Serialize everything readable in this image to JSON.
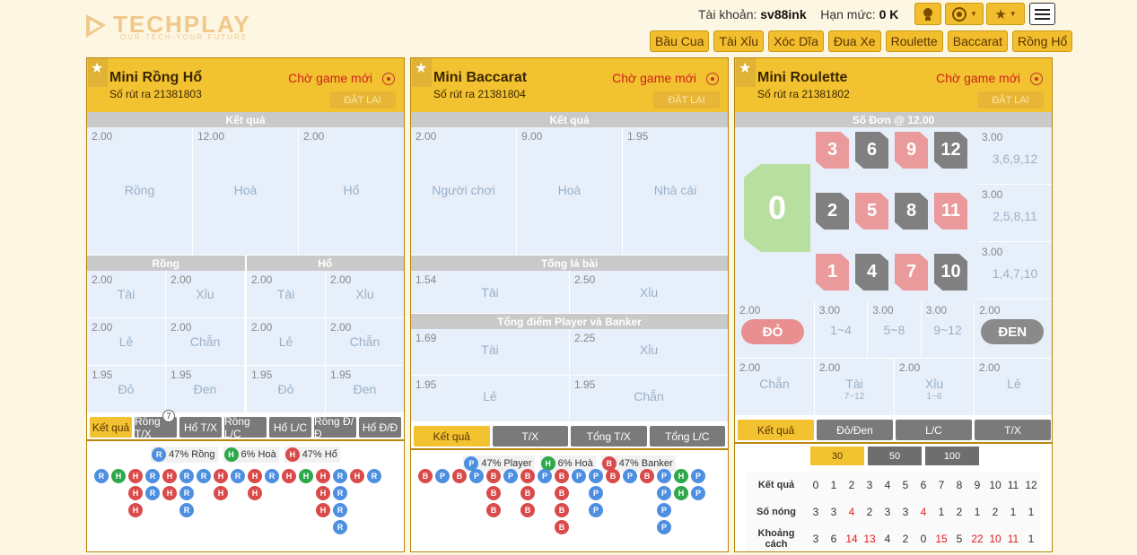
{
  "header": {
    "brand": "TECHPLAY",
    "tagline": "OUR TECH-YOUR FUTURE",
    "account_label": "Tài khoản:",
    "account_value": "sv88ink",
    "limit_label": "Hạn mức:",
    "limit_value": "0 K",
    "games": [
      "Bầu Cua",
      "Tài Xỉu",
      "Xóc Dĩa",
      "Đua Xe",
      "Roulette",
      "Baccarat",
      "Rồng Hổ"
    ]
  },
  "panels": {
    "dragon_tiger": {
      "title": "Mini Rồng Hổ",
      "draw": "Số rút ra  21381803",
      "status": "Chờ game mới",
      "reset": "ĐẶT LẠI",
      "result_bar": "Kết quả",
      "main": [
        {
          "odds": "2.00",
          "label": "Rồng"
        },
        {
          "odds": "12.00",
          "label": "Hoà"
        },
        {
          "odds": "2.00",
          "label": "Hổ"
        }
      ],
      "side_left": "Rồng",
      "side_right": "Hổ",
      "bets": [
        [
          {
            "odds": "2.00",
            "label": "Tài"
          },
          {
            "odds": "2.00",
            "label": "Xỉu"
          },
          {
            "odds": "2.00",
            "label": "Tài"
          },
          {
            "odds": "2.00",
            "label": "Xỉu"
          }
        ],
        [
          {
            "odds": "2.00",
            "label": "Lẻ"
          },
          {
            "odds": "2.00",
            "label": "Chẵn"
          },
          {
            "odds": "2.00",
            "label": "Lẻ"
          },
          {
            "odds": "2.00",
            "label": "Chẵn"
          }
        ],
        [
          {
            "odds": "1.95",
            "label": "Đỏ"
          },
          {
            "odds": "1.95",
            "label": "Đen"
          },
          {
            "odds": "1.95",
            "label": "Đỏ"
          },
          {
            "odds": "1.95",
            "label": "Đen"
          }
        ]
      ],
      "tabs": [
        "Kết quả",
        "Rồng T/X",
        "Hổ T/X",
        "Rồng L/C",
        "Hổ L/C",
        "Rồng Đ/Đ",
        "Hổ Đ/Đ"
      ],
      "tab_badge": "7",
      "stats": [
        {
          "code": "R",
          "text": "47% Rồng",
          "color": "blue"
        },
        {
          "code": "H",
          "text": "6% Hoà",
          "color": "green"
        },
        {
          "code": "H",
          "text": "47% Hổ",
          "color": "red"
        }
      ],
      "road": [
        [
          "R"
        ],
        [
          "G"
        ],
        [
          "H",
          "H",
          "H"
        ],
        [
          "R",
          "R"
        ],
        [
          "H",
          "H"
        ],
        [
          "R",
          "R",
          "R"
        ],
        [
          "R"
        ],
        [
          "H",
          "H"
        ],
        [
          "R"
        ],
        [
          "H",
          "H"
        ],
        [
          "R"
        ],
        [
          "H"
        ],
        [
          "G"
        ],
        [
          "H",
          "H",
          "H"
        ],
        [
          "R",
          "R",
          "R",
          "R"
        ],
        [
          "H"
        ],
        [
          "R"
        ]
      ]
    },
    "baccarat": {
      "title": "Mini Baccarat",
      "draw": "Số rút ra  21381804",
      "status": "Chờ game mới",
      "reset": "ĐẶT LẠI",
      "result_bar": "Kết quả",
      "main": [
        {
          "odds": "2.00",
          "label": "Người chơi"
        },
        {
          "odds": "9.00",
          "label": "Hoà"
        },
        {
          "odds": "1.95",
          "label": "Nhà cái"
        }
      ],
      "total_cards_bar": "Tổng lá bài",
      "total_cards": [
        {
          "odds": "1.54",
          "label": "Tài"
        },
        {
          "odds": "2.50",
          "label": "Xỉu"
        }
      ],
      "total_points_bar": "Tổng điểm Player và Banker",
      "total_points": [
        [
          {
            "odds": "1.69",
            "label": "Tài"
          },
          {
            "odds": "2.25",
            "label": "Xỉu"
          }
        ],
        [
          {
            "odds": "1.95",
            "label": "Lẻ"
          },
          {
            "odds": "1.95",
            "label": "Chẵn"
          }
        ]
      ],
      "tabs": [
        "Kết quả",
        "T/X",
        "Tổng T/X",
        "Tổng L/C"
      ],
      "stats": [
        {
          "code": "P",
          "text": "47% Player",
          "color": "blue"
        },
        {
          "code": "H",
          "text": "6% Hoà",
          "color": "green"
        },
        {
          "code": "B",
          "text": "47% Banker",
          "color": "red"
        }
      ],
      "road": [
        [
          "B"
        ],
        [
          "P"
        ],
        [
          "B"
        ],
        [
          "P"
        ],
        [
          "B",
          "B",
          "B"
        ],
        [
          "P"
        ],
        [
          "B",
          "B",
          "B"
        ],
        [
          "P"
        ],
        [
          "B",
          "B",
          "B",
          "B"
        ],
        [
          "P"
        ],
        [
          "P",
          "P",
          "P"
        ],
        [
          "B"
        ],
        [
          "P"
        ],
        [
          "B"
        ],
        [
          "P",
          "P",
          "P",
          "P"
        ],
        [
          "G",
          "G"
        ],
        [
          "P",
          "P"
        ]
      ]
    },
    "roulette": {
      "title": "Mini Roulette",
      "draw": "Số rút ra  21381802",
      "status": "Chờ game mới",
      "reset": "ĐẶT LẠI",
      "result_bar": "Số Đơn @ 12.00",
      "zero": "0",
      "numbers": [
        {
          "n": "3",
          "c": "red"
        },
        {
          "n": "6",
          "c": "gray"
        },
        {
          "n": "9",
          "c": "red"
        },
        {
          "n": "12",
          "c": "gray"
        },
        {
          "n": "2",
          "c": "gray"
        },
        {
          "n": "5",
          "c": "red"
        },
        {
          "n": "8",
          "c": "gray"
        },
        {
          "n": "11",
          "c": "red"
        },
        {
          "n": "1",
          "c": "red"
        },
        {
          "n": "4",
          "c": "gray"
        },
        {
          "n": "7",
          "c": "red"
        },
        {
          "n": "10",
          "c": "gray"
        }
      ],
      "columns": [
        {
          "odds": "3.00",
          "label": "3,6,9,12"
        },
        {
          "odds": "3.00",
          "label": "2,5,8,11"
        },
        {
          "odds": "3.00",
          "label": "1,4,7,10"
        }
      ],
      "row1": [
        {
          "odds": "2.00",
          "label": "ĐỎ"
        },
        {
          "odds": "3.00",
          "label": "1~4"
        },
        {
          "odds": "3.00",
          "label": "5~8"
        },
        {
          "odds": "3.00",
          "label": "9~12"
        },
        {
          "odds": "2.00",
          "label": "ĐEN"
        }
      ],
      "row2": [
        {
          "odds": "2.00",
          "label": "Chẵn",
          "sub": ""
        },
        {
          "odds": "2.00",
          "label": "Tài",
          "sub": "7~12"
        },
        {
          "odds": "2.00",
          "label": "Xỉu",
          "sub": "1~6"
        },
        {
          "odds": "2.00",
          "label": "Lẻ",
          "sub": ""
        }
      ],
      "tabs": [
        "Kết quả",
        "Đỏ/Đen",
        "L/C",
        "T/X"
      ],
      "segments": [
        "30",
        "50",
        "100"
      ],
      "table": {
        "headers": [
          "Kết quả",
          "Số nóng",
          "Khoảng cách"
        ],
        "numbers": [
          "0",
          "1",
          "2",
          "3",
          "4",
          "5",
          "6",
          "7",
          "8",
          "9",
          "10",
          "11",
          "12"
        ],
        "hot": [
          "3",
          "3",
          "4",
          "2",
          "3",
          "3",
          "4",
          "1",
          "2",
          "1",
          "2",
          "1",
          "1"
        ],
        "gap": [
          "3",
          "6",
          "14",
          "13",
          "4",
          "2",
          "0",
          "15",
          "5",
          "22",
          "10",
          "11",
          "1"
        ]
      }
    }
  },
  "colors": {
    "accent": "#f2c231",
    "red": "#d94a4a",
    "blue": "#4d8fe0",
    "green": "#2ea84a"
  }
}
